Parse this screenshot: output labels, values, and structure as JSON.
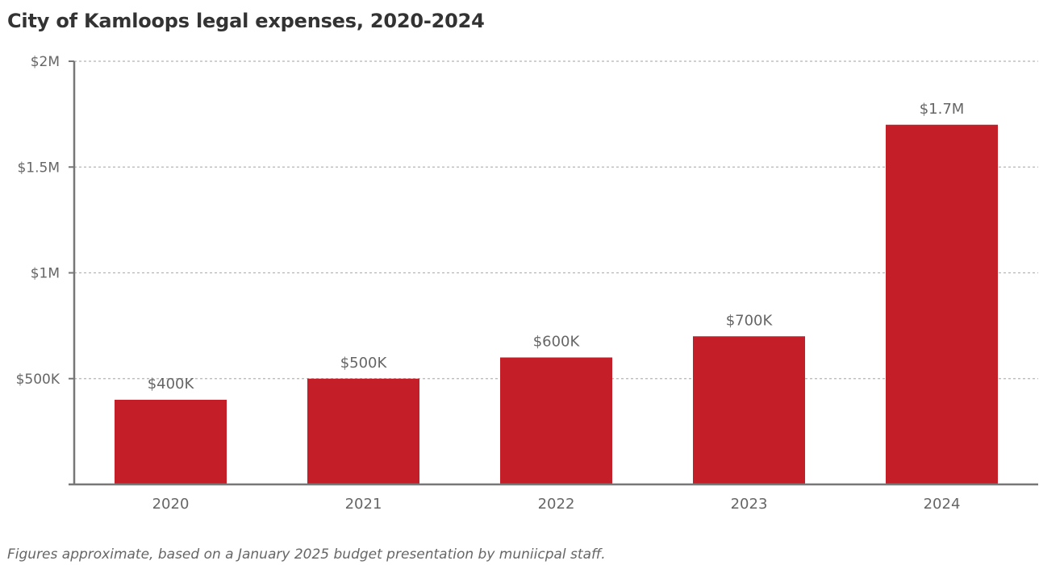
{
  "chart_data": {
    "type": "bar",
    "title": "City of Kamloops legal expenses, 2020-2024",
    "categories": [
      "2020",
      "2021",
      "2022",
      "2023",
      "2024"
    ],
    "values": [
      400000,
      500000,
      600000,
      700000,
      1700000
    ],
    "data_labels": [
      "$400K",
      "$500K",
      "$600K",
      "$700K",
      "$1.7M"
    ],
    "xlabel": "",
    "ylabel": "",
    "ylim": [
      0,
      2000000
    ],
    "y_ticks": [
      {
        "value": 500000,
        "label": "$500K"
      },
      {
        "value": 1000000,
        "label": "$1M"
      },
      {
        "value": 1500000,
        "label": "$1.5M"
      },
      {
        "value": 2000000,
        "label": "$2M"
      }
    ],
    "grid": true,
    "legend": "none",
    "bar_color": "#c41f28",
    "footnote": "Figures approximate, based on a January 2025 budget presentation by muniicpal staff."
  }
}
